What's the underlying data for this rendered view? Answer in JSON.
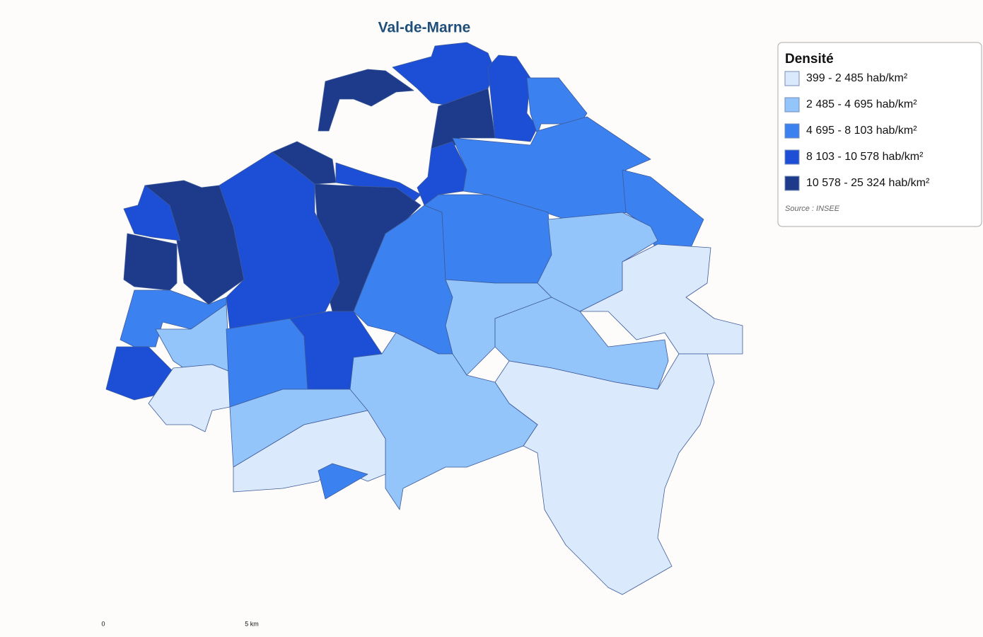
{
  "title": "Val-de-Marne",
  "legend": {
    "title": "Densité",
    "classes": [
      {
        "label": "399 - 2 485 hab/km²",
        "color": "#dbe9fd"
      },
      {
        "label": "2 485 - 4 695 hab/km²",
        "color": "#93c4fa"
      },
      {
        "label": "4 695 - 8 103 hab/km²",
        "color": "#3b82f0"
      },
      {
        "label": "8 103 - 10 578 hab/km²",
        "color": "#1d4fd6"
      },
      {
        "label": "10 578 - 25 324 hab/km²",
        "color": "#1e3a8a"
      }
    ],
    "source": "Source : INSEE"
  },
  "scale": {
    "start": 0,
    "end": "5 km"
  }
}
